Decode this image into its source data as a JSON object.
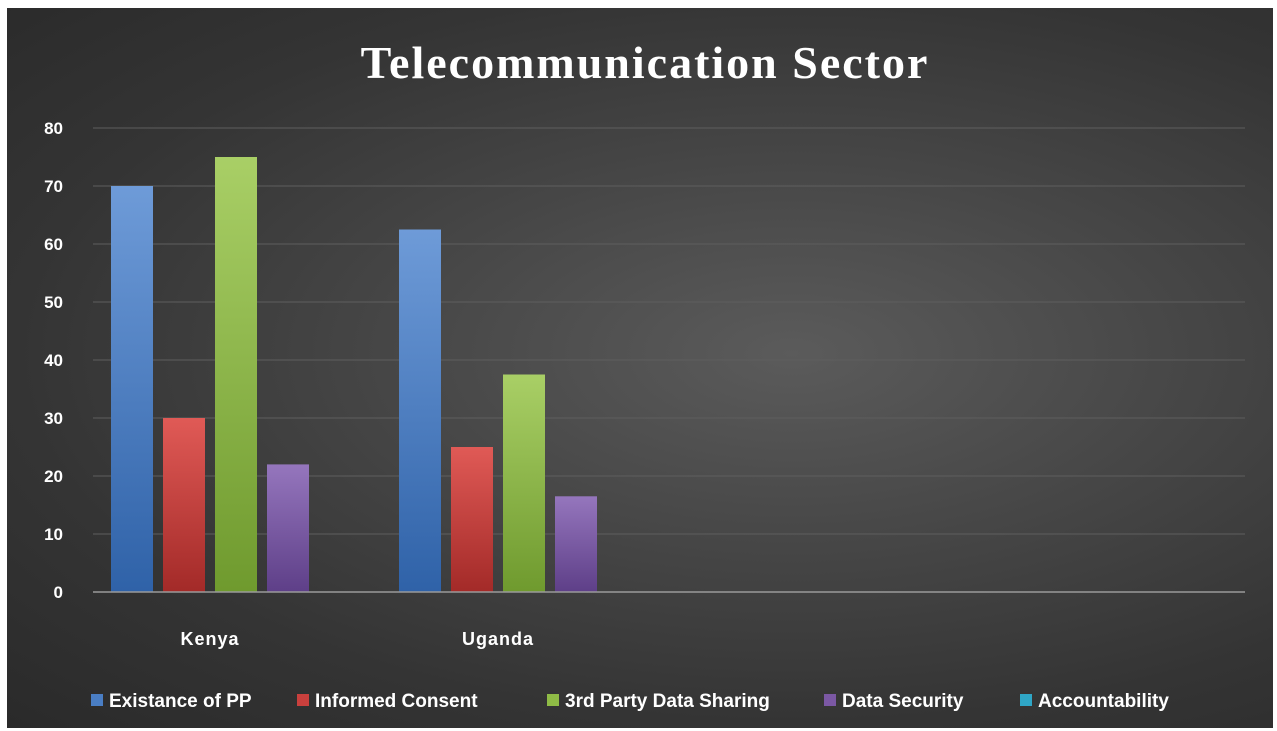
{
  "chart_data": {
    "type": "bar",
    "title": "Telecommunication Sector",
    "categories": [
      "Kenya",
      "Uganda"
    ],
    "ylim": [
      0,
      80
    ],
    "yticks": [
      0,
      10,
      20,
      30,
      40,
      50,
      60,
      70,
      80
    ],
    "grid": true,
    "legend_position": "bottom",
    "series": [
      {
        "name": "Existance of PP",
        "color": "#4a7ec4",
        "values": [
          70,
          62.5
        ]
      },
      {
        "name": "Informed Consent",
        "color": "#c9403d",
        "values": [
          30,
          25
        ]
      },
      {
        "name": "3rd Party Data Sharing",
        "color": "#8fbb46",
        "values": [
          75,
          37.5
        ]
      },
      {
        "name": "Data Security",
        "color": "#7b58a4",
        "values": [
          22,
          16.5
        ]
      },
      {
        "name": "Accountability",
        "color": "#2fa6c6",
        "values": [
          0,
          0
        ]
      }
    ]
  }
}
